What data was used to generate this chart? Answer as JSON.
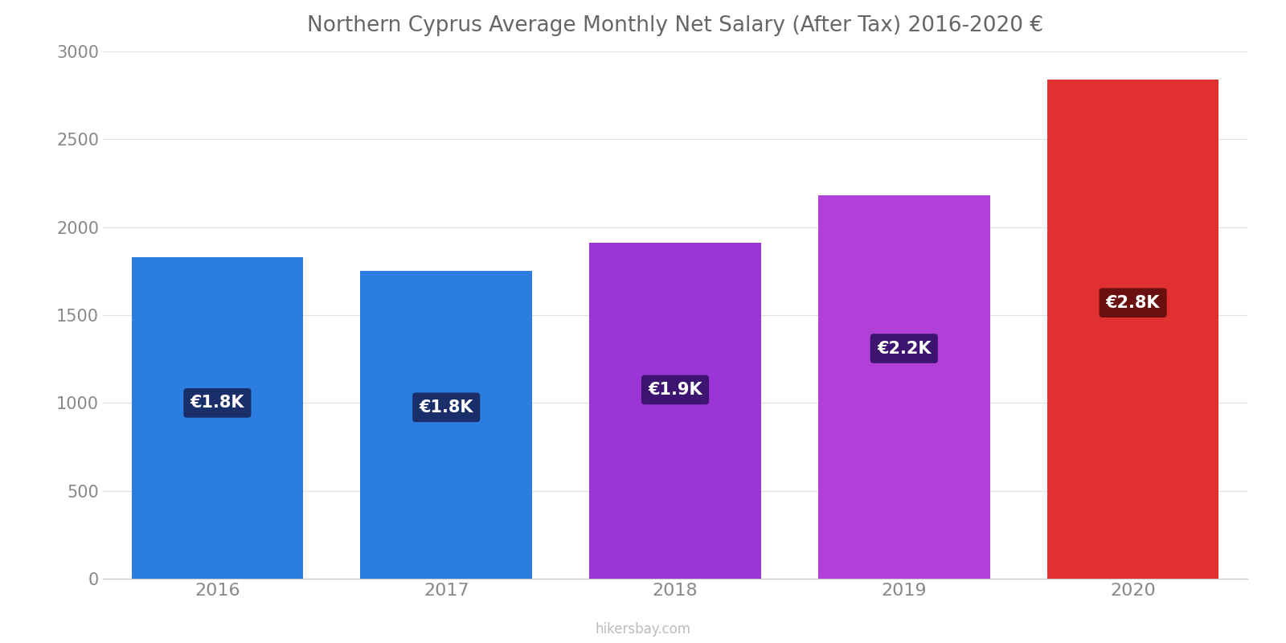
{
  "title": "Northern Cyprus Average Monthly Net Salary (After Tax) 2016-2020 €",
  "categories": [
    "2016",
    "2017",
    "2018",
    "2019",
    "2020"
  ],
  "values": [
    1830,
    1750,
    1910,
    2180,
    2840
  ],
  "bar_colors": [
    "#2b7de0",
    "#2b7de0",
    "#9b35d5",
    "#b040d8",
    "#e03030"
  ],
  "label_bg_colors": [
    "#1a2f6a",
    "#1a2f6a",
    "#3d1570",
    "#3d1570",
    "#6a1010"
  ],
  "labels": [
    "€1.8K",
    "€1.8K",
    "€1.9K",
    "€2.2K",
    "€2.8K"
  ],
  "ylim": [
    0,
    3000
  ],
  "yticks": [
    0,
    500,
    1000,
    1500,
    2000,
    2500,
    3000
  ],
  "watermark": "hikersbay.com",
  "background_color": "#ffffff",
  "title_color": "#666666",
  "tick_color": "#888888",
  "label_y_positions": [
    1000,
    975,
    1075,
    1310,
    1570
  ],
  "bar_width": 0.75
}
